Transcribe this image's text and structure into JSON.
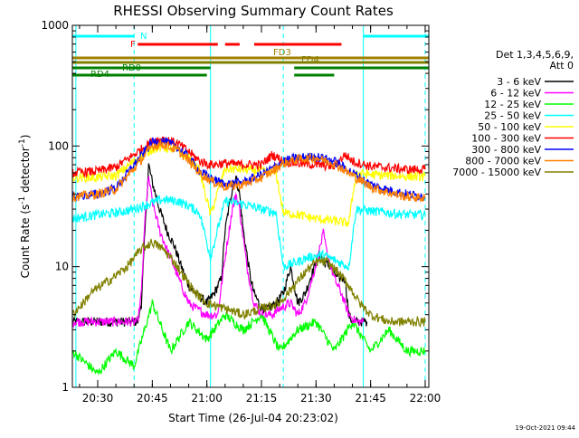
{
  "chart_data": {
    "type": "line",
    "title": "RHESSI Observing Summary Count Rates",
    "xlabel": "Start Time (26-Jul-04 20:23:02)",
    "ylabel_main": "Count Rate (s",
    "ylabel_sup1": "-1",
    "ylabel_mid": " detector",
    "ylabel_sup2": "-1",
    "ylabel_end": ")",
    "timestamp": "19-Oct-2021 09:44",
    "y_scale": "log",
    "xlim": [
      "20:23:02",
      "22:01:00"
    ],
    "ylim": [
      1,
      1000
    ],
    "x_ticks": [
      "20:30",
      "20:45",
      "21:00",
      "21:15",
      "21:30",
      "21:45",
      "22:00"
    ],
    "y_ticks": [
      "1",
      "10",
      "100",
      "1000"
    ],
    "legend_header": [
      "Det 1,3,4,5,6,9,",
      "Att 0"
    ],
    "legend_position": "right",
    "series": [
      {
        "name": "3 - 6 keV",
        "color": "#000000",
        "points": [
          [
            "20:23",
            3.5
          ],
          [
            "20:41",
            3.5
          ],
          [
            "20:42",
            5
          ],
          [
            "20:43",
            20
          ],
          [
            "20:44",
            70
          ],
          [
            "20:45",
            50
          ],
          [
            "20:47",
            30
          ],
          [
            "20:49",
            20
          ],
          [
            "20:51",
            15
          ],
          [
            "20:53",
            10
          ],
          [
            "20:55",
            7
          ],
          [
            "20:57",
            6
          ],
          [
            "21:00",
            5
          ],
          [
            "21:02",
            6
          ],
          [
            "21:04",
            8
          ],
          [
            "21:05",
            20
          ],
          [
            "21:07",
            45
          ],
          [
            "21:08",
            55
          ],
          [
            "21:09",
            40
          ],
          [
            "21:10",
            20
          ],
          [
            "21:12",
            8
          ],
          [
            "21:13",
            6
          ],
          [
            "21:15",
            4.5
          ],
          [
            "21:17",
            4.5
          ],
          [
            "21:19",
            5
          ],
          [
            "21:21",
            6
          ],
          [
            "21:23",
            10
          ],
          [
            "21:25",
            5
          ],
          [
            "21:27",
            6
          ],
          [
            "21:29",
            9
          ],
          [
            "21:31",
            13
          ],
          [
            "21:32",
            11
          ],
          [
            "21:34",
            10
          ],
          [
            "21:36",
            8
          ],
          [
            "21:38",
            8
          ],
          [
            "21:39",
            4
          ],
          [
            "21:40",
            3.5
          ],
          [
            "21:44",
            3.5
          ]
        ]
      },
      {
        "name": "6 - 12 keV",
        "color": "#ff00ff",
        "points": [
          [
            "20:23",
            3.5
          ],
          [
            "20:41",
            3.5
          ],
          [
            "20:42",
            6
          ],
          [
            "20:43",
            25
          ],
          [
            "20:44",
            55
          ],
          [
            "20:45",
            35
          ],
          [
            "20:47",
            20
          ],
          [
            "20:49",
            14
          ],
          [
            "20:51",
            10
          ],
          [
            "20:53",
            7
          ],
          [
            "20:55",
            5
          ],
          [
            "20:57",
            4.5
          ],
          [
            "21:00",
            4
          ],
          [
            "21:03",
            4
          ],
          [
            "21:05",
            12
          ],
          [
            "21:07",
            30
          ],
          [
            "21:08",
            40
          ],
          [
            "21:09",
            30
          ],
          [
            "21:11",
            10
          ],
          [
            "21:13",
            5
          ],
          [
            "21:15",
            4
          ],
          [
            "21:18",
            4
          ],
          [
            "21:20",
            4.5
          ],
          [
            "21:23",
            5
          ],
          [
            "21:25",
            4
          ],
          [
            "21:27",
            5
          ],
          [
            "21:29",
            8
          ],
          [
            "21:31",
            14
          ],
          [
            "21:32",
            19
          ],
          [
            "21:33",
            13
          ],
          [
            "21:35",
            8
          ],
          [
            "21:37",
            6
          ],
          [
            "21:39",
            4
          ],
          [
            "21:41",
            3.5
          ],
          [
            "21:43",
            3.5
          ]
        ]
      },
      {
        "name": "12 - 25 keV",
        "color": "#00ff00",
        "points": [
          [
            "20:23",
            2
          ],
          [
            "20:30",
            1.3
          ],
          [
            "20:35",
            2
          ],
          [
            "20:40",
            1.5
          ],
          [
            "20:45",
            5
          ],
          [
            "20:50",
            2
          ],
          [
            "20:55",
            3.5
          ],
          [
            "21:00",
            2.5
          ],
          [
            "21:05",
            4
          ],
          [
            "21:10",
            3
          ],
          [
            "21:15",
            4
          ],
          [
            "21:20",
            2
          ],
          [
            "21:25",
            3
          ],
          [
            "21:30",
            3.5
          ],
          [
            "21:35",
            2
          ],
          [
            "21:40",
            3.5
          ],
          [
            "21:45",
            2
          ],
          [
            "21:50",
            3
          ],
          [
            "21:55",
            2
          ],
          [
            "22:00",
            2
          ]
        ]
      },
      {
        "name": "25 - 50 keV",
        "color": "#00ffff",
        "points": [
          [
            "20:23",
            25
          ],
          [
            "20:30",
            27
          ],
          [
            "20:35",
            28
          ],
          [
            "20:40",
            30
          ],
          [
            "20:45",
            34
          ],
          [
            "20:48",
            36
          ],
          [
            "20:52",
            35
          ],
          [
            "20:55",
            32
          ],
          [
            "20:58",
            28
          ],
          [
            "21:01",
            12
          ],
          [
            "21:05",
            35
          ],
          [
            "21:10",
            33
          ],
          [
            "21:15",
            30
          ],
          [
            "21:19",
            28
          ],
          [
            "21:21",
            10
          ],
          [
            "21:25",
            11
          ],
          [
            "21:28",
            12
          ],
          [
            "21:32",
            12.5
          ],
          [
            "21:36",
            11
          ],
          [
            "21:39",
            10
          ],
          [
            "21:41",
            30
          ],
          [
            "21:45",
            29
          ],
          [
            "21:50",
            28
          ],
          [
            "21:55",
            27
          ],
          [
            "22:00",
            27
          ]
        ]
      },
      {
        "name": "50 - 100 keV",
        "color": "#ffff00",
        "points": [
          [
            "20:23",
            55
          ],
          [
            "20:30",
            55
          ],
          [
            "20:35",
            57
          ],
          [
            "20:40",
            75
          ],
          [
            "20:45",
            95
          ],
          [
            "20:48",
            98
          ],
          [
            "20:52",
            92
          ],
          [
            "20:55",
            80
          ],
          [
            "20:58",
            62
          ],
          [
            "21:01",
            27
          ],
          [
            "21:05",
            65
          ],
          [
            "21:10",
            64
          ],
          [
            "21:15",
            62
          ],
          [
            "21:19",
            60
          ],
          [
            "21:21",
            28
          ],
          [
            "21:25",
            27
          ],
          [
            "21:30",
            25
          ],
          [
            "21:35",
            24
          ],
          [
            "21:39",
            23
          ],
          [
            "21:41",
            60
          ],
          [
            "21:45",
            58
          ],
          [
            "21:50",
            57
          ],
          [
            "21:55",
            56
          ],
          [
            "22:00",
            56
          ]
        ]
      },
      {
        "name": "100 - 300 keV",
        "color": "#ff0000",
        "points": [
          [
            "20:23",
            60
          ],
          [
            "20:30",
            62
          ],
          [
            "20:35",
            67
          ],
          [
            "20:40",
            85
          ],
          [
            "20:45",
            110
          ],
          [
            "20:48",
            115
          ],
          [
            "20:52",
            105
          ],
          [
            "20:55",
            90
          ],
          [
            "20:58",
            75
          ],
          [
            "21:01",
            70
          ],
          [
            "21:05",
            72
          ],
          [
            "21:10",
            70
          ],
          [
            "21:15",
            70
          ],
          [
            "21:18",
            85
          ],
          [
            "21:21",
            75
          ],
          [
            "21:25",
            72
          ],
          [
            "21:30",
            70
          ],
          [
            "21:35",
            68
          ],
          [
            "21:38",
            85
          ],
          [
            "21:40",
            75
          ],
          [
            "21:45",
            68
          ],
          [
            "21:50",
            66
          ],
          [
            "21:55",
            64
          ],
          [
            "22:00",
            64
          ]
        ]
      },
      {
        "name": "300 - 800 keV",
        "color": "#0000ff",
        "points": [
          [
            "20:23",
            38
          ],
          [
            "20:30",
            40
          ],
          [
            "20:35",
            45
          ],
          [
            "20:40",
            70
          ],
          [
            "20:45",
            108
          ],
          [
            "20:48",
            110
          ],
          [
            "20:52",
            98
          ],
          [
            "20:55",
            80
          ],
          [
            "20:58",
            62
          ],
          [
            "21:01",
            54
          ],
          [
            "21:05",
            48
          ],
          [
            "21:10",
            50
          ],
          [
            "21:15",
            58
          ],
          [
            "21:18",
            65
          ],
          [
            "21:21",
            75
          ],
          [
            "21:25",
            80
          ],
          [
            "21:30",
            82
          ],
          [
            "21:35",
            75
          ],
          [
            "21:40",
            60
          ],
          [
            "21:45",
            48
          ],
          [
            "21:50",
            43
          ],
          [
            "21:55",
            40
          ],
          [
            "22:00",
            38
          ]
        ]
      },
      {
        "name": "800 - 7000 keV",
        "color": "#ff8000",
        "points": [
          [
            "20:23",
            38
          ],
          [
            "20:30",
            40
          ],
          [
            "20:35",
            44
          ],
          [
            "20:40",
            65
          ],
          [
            "20:45",
            100
          ],
          [
            "20:48",
            104
          ],
          [
            "20:52",
            92
          ],
          [
            "20:55",
            76
          ],
          [
            "20:58",
            60
          ],
          [
            "21:01",
            52
          ],
          [
            "21:05",
            46
          ],
          [
            "21:10",
            48
          ],
          [
            "21:15",
            55
          ],
          [
            "21:18",
            62
          ],
          [
            "21:21",
            72
          ],
          [
            "21:25",
            78
          ],
          [
            "21:30",
            80
          ],
          [
            "21:35",
            72
          ],
          [
            "21:40",
            57
          ],
          [
            "21:45",
            46
          ],
          [
            "21:50",
            41
          ],
          [
            "21:55",
            38
          ],
          [
            "22:00",
            37
          ]
        ]
      },
      {
        "name": "7000 - 15000 keV",
        "color": "#808000",
        "points": [
          [
            "20:23",
            4
          ],
          [
            "20:26",
            5
          ],
          [
            "20:28",
            6
          ],
          [
            "20:31",
            7
          ],
          [
            "20:34",
            8
          ],
          [
            "20:38",
            10
          ],
          [
            "20:42",
            14
          ],
          [
            "20:45",
            16
          ],
          [
            "20:48",
            14
          ],
          [
            "20:51",
            11
          ],
          [
            "20:54",
            8
          ],
          [
            "20:57",
            6
          ],
          [
            "21:00",
            5
          ],
          [
            "21:05",
            4.5
          ],
          [
            "21:10",
            4
          ],
          [
            "21:15",
            4.5
          ],
          [
            "21:20",
            5
          ],
          [
            "21:24",
            7
          ],
          [
            "21:27",
            9
          ],
          [
            "21:30",
            11
          ],
          [
            "21:33",
            11
          ],
          [
            "21:36",
            9
          ],
          [
            "21:39",
            7
          ],
          [
            "21:42",
            5
          ],
          [
            "21:45",
            4
          ],
          [
            "21:50",
            3.5
          ],
          [
            "21:55",
            3.5
          ],
          [
            "22:00",
            3.5
          ]
        ]
      }
    ],
    "flags": [
      {
        "label": "N",
        "color": "#00ffff",
        "segments": [
          [
            "20:23",
            "20:40"
          ],
          [
            "21:43",
            "22:01"
          ]
        ]
      },
      {
        "label": "F",
        "color": "#ff0000",
        "segments": [
          [
            "20:41",
            "21:03"
          ],
          [
            "21:05",
            "21:09"
          ],
          [
            "21:13",
            "21:37"
          ]
        ]
      },
      {
        "label": "FD3",
        "color": "#a08000",
        "segments": [
          [
            "20:23",
            "22:01"
          ]
        ]
      },
      {
        "label": "FD4",
        "color": "#808000",
        "segments": [
          [
            "20:23",
            "22:01"
          ]
        ]
      },
      {
        "label": "RD0",
        "color": "#008000",
        "segments": [
          [
            "20:23",
            "21:01"
          ],
          [
            "21:24",
            "22:01"
          ]
        ]
      },
      {
        "label": "RD4",
        "color": "#008000",
        "segments": [
          [
            "20:23",
            "21:00"
          ],
          [
            "21:24",
            "21:35"
          ]
        ]
      }
    ],
    "vertical_markers": [
      {
        "time": "20:24",
        "color": "#00ffff",
        "style": "solid"
      },
      {
        "time": "20:40",
        "color": "#00ffff",
        "style": "dashed"
      },
      {
        "time": "21:01",
        "color": "#00ffff",
        "style": "solid"
      },
      {
        "time": "21:21",
        "color": "#00ffff",
        "style": "dashed"
      },
      {
        "time": "21:43",
        "color": "#00ffff",
        "style": "solid"
      },
      {
        "time": "22:00",
        "color": "#00ffff",
        "style": "dashed"
      }
    ]
  }
}
